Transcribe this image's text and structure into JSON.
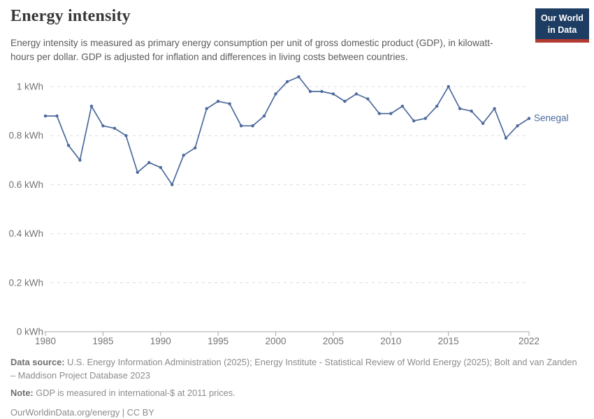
{
  "header": {
    "title": "Energy intensity",
    "subtitle": "Energy intensity is measured as primary energy consumption per unit of gross domestic product (GDP), in kilowatt-hours per dollar. GDP is adjusted for inflation and differences in living costs between countries.",
    "logo": {
      "line1": "Our World",
      "line2": "in Data"
    }
  },
  "chart_data": {
    "type": "line",
    "title": "Energy intensity",
    "unit": "kWh",
    "xlim": [
      1980,
      2022
    ],
    "ylim": [
      0,
      1.05
    ],
    "grid": "horizontal-dashed",
    "legend_position": "end-of-line",
    "x_ticks": [
      1980,
      1985,
      1990,
      1995,
      2000,
      2005,
      2010,
      2015,
      2022
    ],
    "y_ticks": [
      {
        "value": 0,
        "label": "0 kWh"
      },
      {
        "value": 0.2,
        "label": "0.2 kWh"
      },
      {
        "value": 0.4,
        "label": "0.4 kWh"
      },
      {
        "value": 0.6,
        "label": "0.6 kWh"
      },
      {
        "value": 0.8,
        "label": "0.8 kWh"
      },
      {
        "value": 1,
        "label": "1 kWh"
      }
    ],
    "series": [
      {
        "name": "Senegal",
        "color": "#4c6a9c",
        "x": [
          1980,
          1981,
          1982,
          1983,
          1984,
          1985,
          1986,
          1987,
          1988,
          1989,
          1990,
          1991,
          1992,
          1993,
          1994,
          1995,
          1996,
          1997,
          1998,
          1999,
          2000,
          2001,
          2002,
          2003,
          2004,
          2005,
          2006,
          2007,
          2008,
          2009,
          2010,
          2011,
          2012,
          2013,
          2014,
          2015,
          2016,
          2017,
          2018,
          2019,
          2020,
          2021,
          2022
        ],
        "values": [
          0.88,
          0.88,
          0.76,
          0.7,
          0.92,
          0.84,
          0.83,
          0.8,
          0.65,
          0.69,
          0.67,
          0.6,
          0.72,
          0.75,
          0.91,
          0.94,
          0.93,
          0.84,
          0.84,
          0.88,
          0.97,
          1.02,
          1.04,
          0.98,
          0.98,
          0.97,
          0.94,
          0.97,
          0.95,
          0.89,
          0.89,
          0.92,
          0.86,
          0.87,
          0.92,
          1.0,
          0.91,
          0.9,
          0.85,
          0.91,
          0.79,
          0.84,
          0.87
        ]
      }
    ]
  },
  "footer": {
    "source_label": "Data source:",
    "source_text": " U.S. Energy Information Administration (2025); Energy Institute - Statistical Review of World Energy (2025); Bolt and van Zanden – Maddison Project Database 2023",
    "note_label": "Note:",
    "note_text": " GDP is measured in international-$ at 2011 prices.",
    "link": "OurWorldinData.org/energy | CC BY"
  },
  "colors": {
    "accent_line": "#4c6a9c",
    "logo_navy": "#1d3d63",
    "logo_red": "#b13a31",
    "gridline": "#dcdcdc",
    "axis": "#a8a8a8",
    "tick_label": "#737373",
    "title_text": "#383636",
    "subtitle_text": "#5b5b5b"
  }
}
